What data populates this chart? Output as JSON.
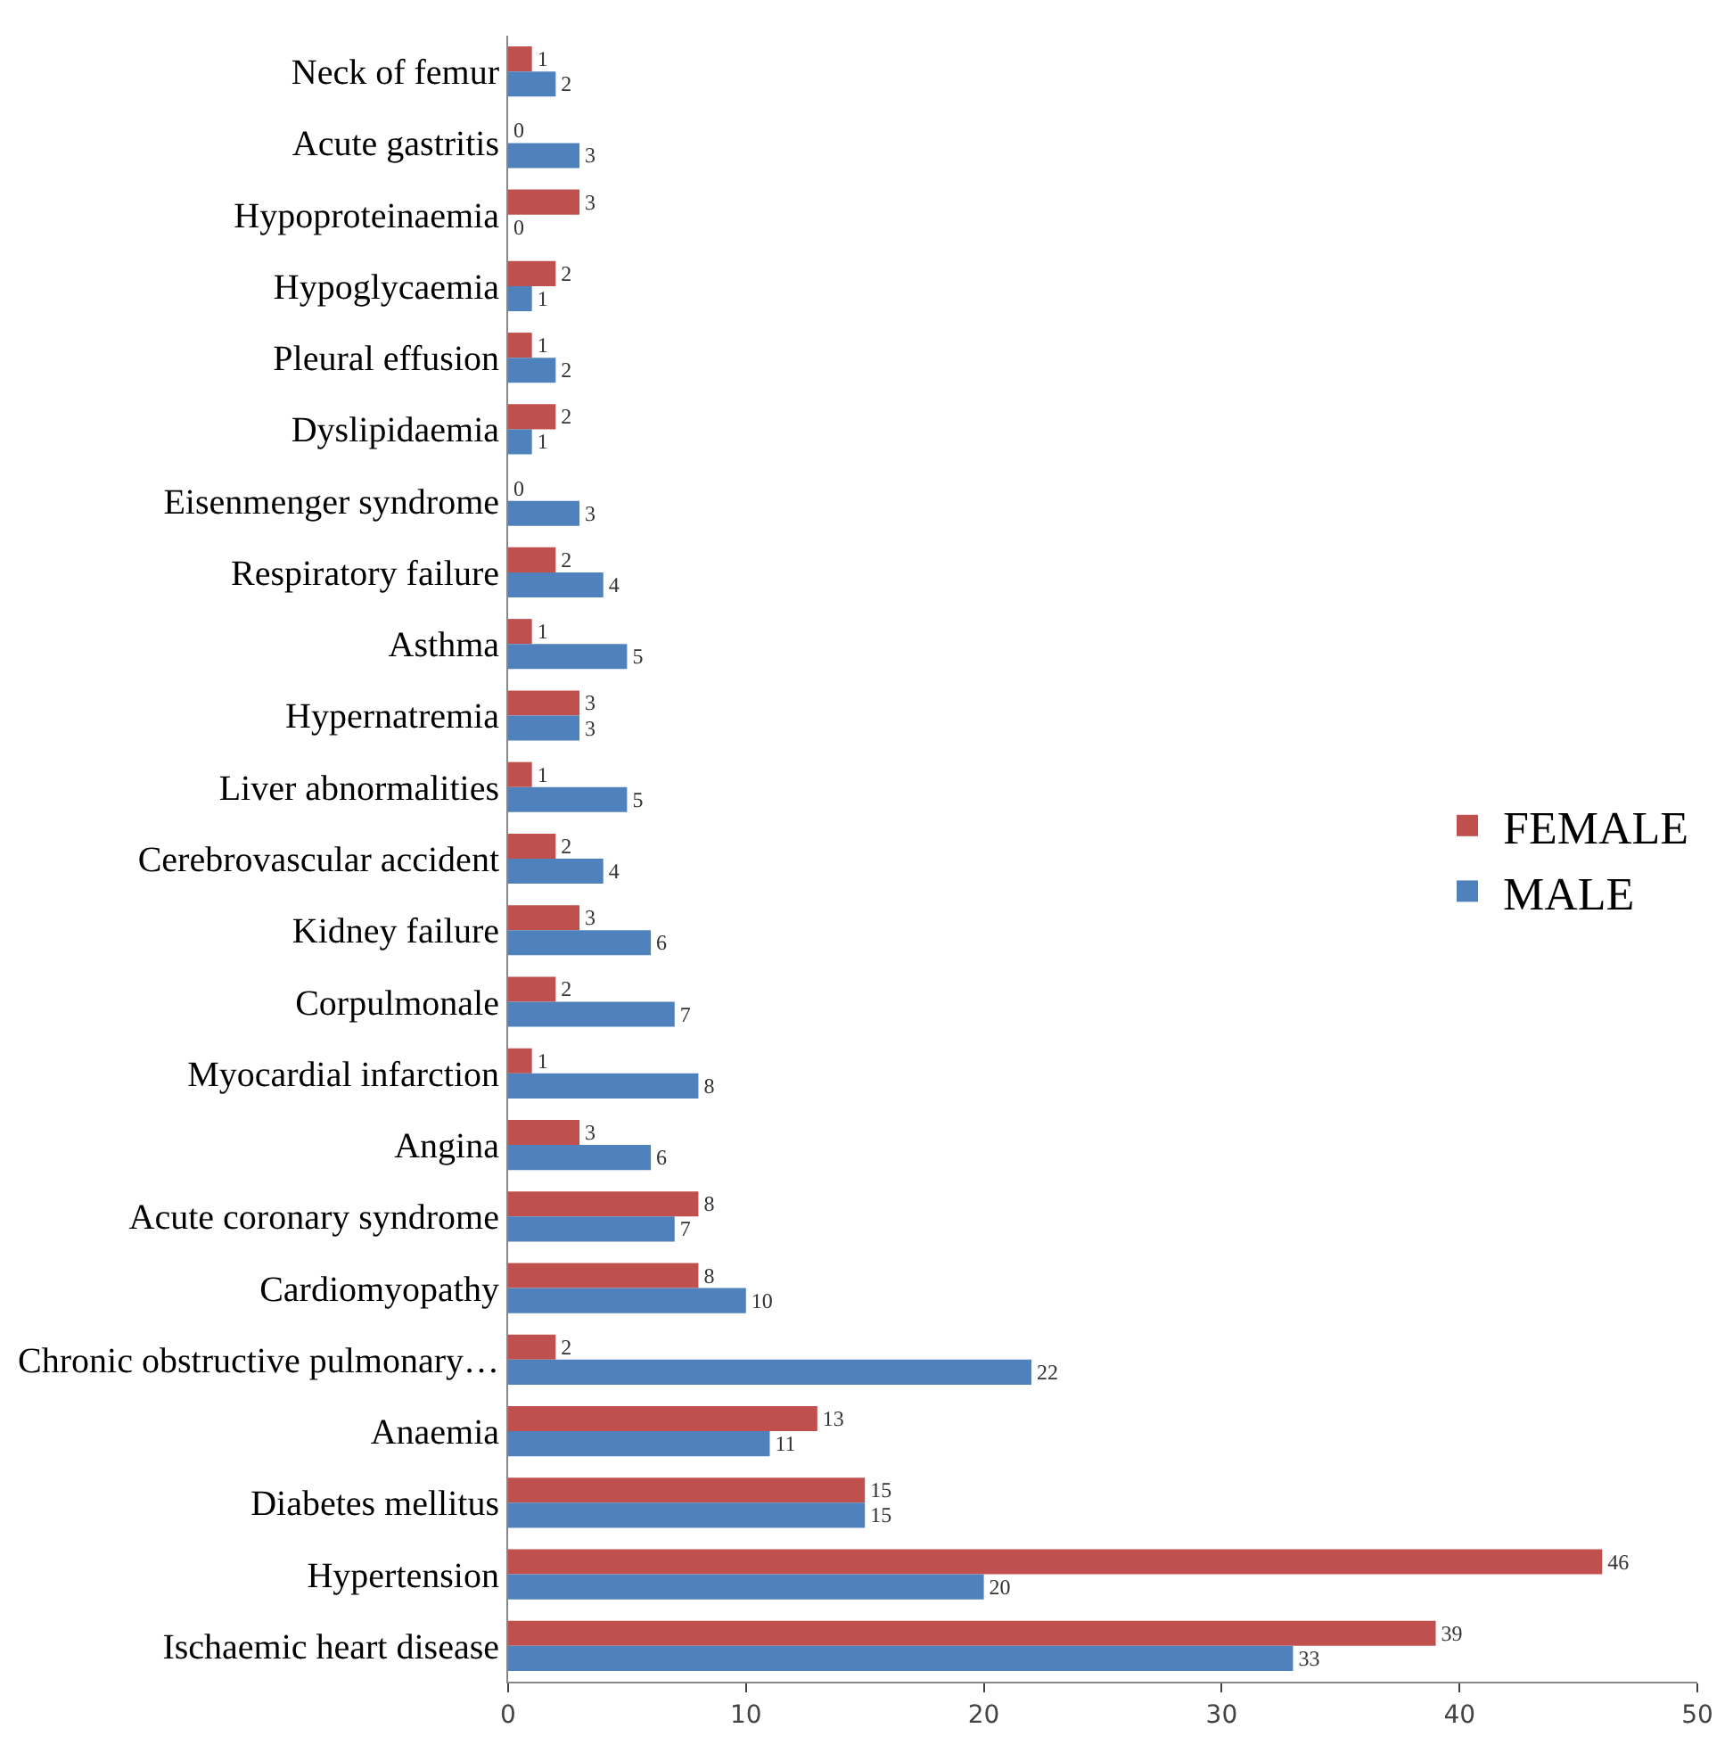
{
  "chart_data": {
    "type": "bar",
    "orientation": "horizontal",
    "categories": [
      "Neck of femur",
      "Acute gastritis",
      "Hypoproteinaemia",
      "Hypoglycaemia",
      "Pleural effusion",
      "Dyslipidaemia",
      "Eisenmenger syndrome",
      "Respiratory failure",
      "Asthma",
      "Hypernatremia",
      "Liver abnormalities",
      "Cerebrovascular accident",
      "Kidney failure",
      "Corpulmonale",
      "Myocardial infarction",
      "Angina",
      "Acute coronary syndrome",
      "Cardiomyopathy",
      "Chronic obstructive pulmonary…",
      "Anaemia",
      "Diabetes mellitus",
      "Hypertension",
      "Ischaemic heart disease"
    ],
    "series": [
      {
        "name": "FEMALE",
        "color": "#c0504d",
        "values": [
          1,
          0,
          3,
          2,
          1,
          2,
          0,
          2,
          1,
          3,
          1,
          2,
          3,
          2,
          1,
          3,
          8,
          8,
          2,
          13,
          15,
          46,
          39
        ]
      },
      {
        "name": "MALE",
        "color": "#4f81bd",
        "values": [
          2,
          3,
          0,
          1,
          2,
          1,
          3,
          4,
          5,
          3,
          5,
          4,
          6,
          7,
          8,
          6,
          7,
          10,
          22,
          11,
          15,
          20,
          33
        ]
      }
    ],
    "xlim": [
      0,
      50
    ],
    "xticks": [
      0,
      10,
      20,
      30,
      40,
      50
    ],
    "data_labels": true,
    "legend": "right"
  }
}
